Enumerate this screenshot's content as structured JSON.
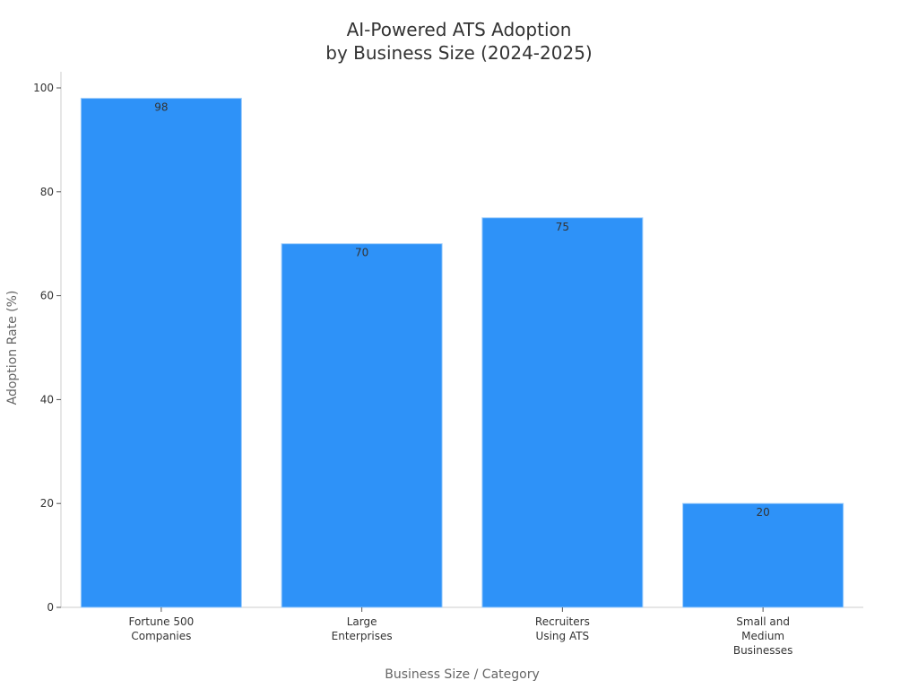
{
  "chart_data": {
    "type": "bar",
    "title": "AI-Powered ATS Adoption\nby Business Size (2024-2025)",
    "title_lines": [
      "AI-Powered ATS Adoption",
      "by Business Size (2024-2025)"
    ],
    "xlabel": "Business Size / Category",
    "ylabel": "Adoption Rate (%)",
    "categories": [
      "Fortune 500 Companies",
      "Large Enterprises",
      "Recruiters Using ATS",
      "Small and Medium Businesses"
    ],
    "category_lines": [
      [
        "Fortune 500",
        "Companies"
      ],
      [
        "Large",
        "Enterprises"
      ],
      [
        "Recruiters",
        "Using ATS"
      ],
      [
        "Small and",
        "Medium",
        "Businesses"
      ]
    ],
    "values": [
      98,
      70,
      75,
      20
    ],
    "data_labels": [
      "98",
      "70",
      "75",
      "20"
    ],
    "ylim": [
      0,
      100
    ],
    "yticks": [
      0,
      20,
      40,
      60,
      80,
      100
    ],
    "grid": false,
    "legend": null,
    "colors": {
      "bar": "#2e92f8",
      "bar_edge": "#9fcdfb",
      "axis": "#cccccc",
      "text": "#333333",
      "label": "#666666"
    }
  }
}
